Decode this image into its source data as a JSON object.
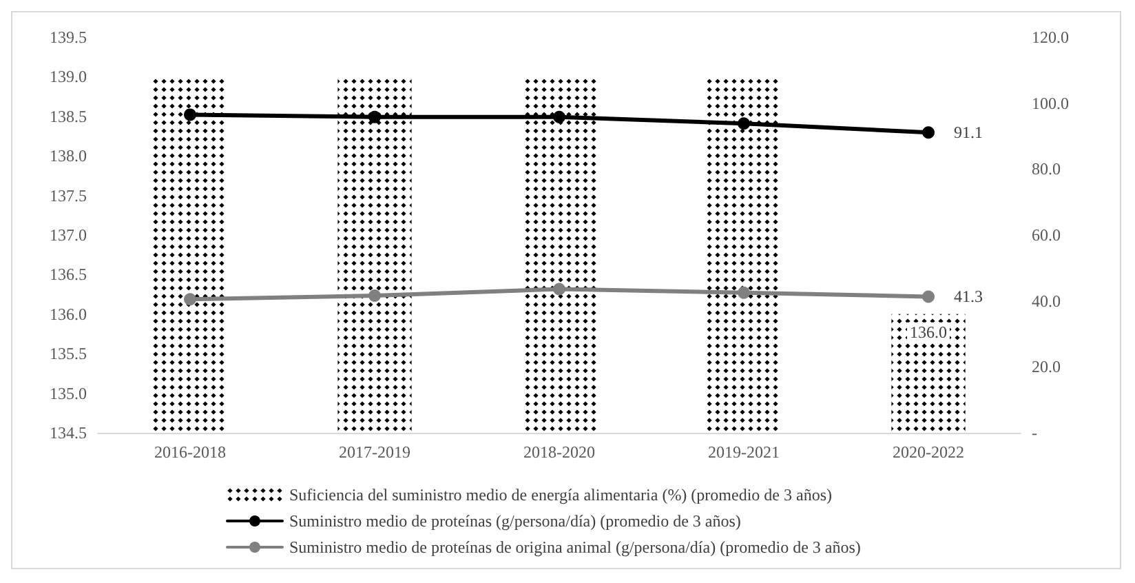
{
  "chart_data": {
    "type": "bar",
    "categories": [
      "2016-2018",
      "2017-2019",
      "2018-2020",
      "2019-2021",
      "2020-2022"
    ],
    "series": [
      {
        "name": "Suficiencia del suministro medio de energía alimentaria (%) (promedio de 3 años)",
        "color": "#000000",
        "values": [
          139.0,
          139.0,
          139.0,
          139.0,
          136.0
        ],
        "value_labels": [
          null,
          null,
          null,
          null,
          "136.0"
        ]
      },
      {
        "name": "Suministro medio de proteínas (g/persona/día) (promedio de 3 años)",
        "type": "line",
        "axis": "y2",
        "color": "#000000",
        "values": [
          96.5,
          95.8,
          95.8,
          93.8,
          91.1
        ],
        "value_labels": [
          null,
          null,
          null,
          null,
          "91.1"
        ]
      },
      {
        "name": "Suministro medio de proteínas de origina animal (g/persona/día) (promedio de 3 años)",
        "type": "line",
        "axis": "y2",
        "color": "#808080",
        "values": [
          40.5,
          41.6,
          43.6,
          42.5,
          41.3
        ],
        "value_labels": [
          null,
          null,
          null,
          null,
          "41.3"
        ]
      }
    ],
    "ylim": [
      134.5,
      139.5
    ],
    "yticks": [
      134.5,
      {
        "value": 135,
        "label": "135.0"
      },
      135.5,
      {
        "value": 136,
        "label": "136.0"
      },
      136.5,
      {
        "value": 137,
        "label": "137.0"
      },
      137.5,
      {
        "value": 138,
        "label": "138.0"
      },
      138.5,
      {
        "value": 139,
        "label": "139.0"
      },
      139.5
    ],
    "y2lim": [
      0,
      120
    ],
    "y2ticks": [
      {
        "value": 0,
        "label": "-"
      },
      {
        "value": 20,
        "label": "20.0"
      },
      {
        "value": 40,
        "label": "40.0"
      },
      {
        "value": 60,
        "label": "60.0"
      },
      {
        "value": 80,
        "label": "80.0"
      },
      {
        "value": 100,
        "label": "100.0"
      },
      {
        "value": 120,
        "label": "120.0"
      }
    ],
    "grid": false,
    "legend": "bottom",
    "marker": "circle",
    "line_style": "solid"
  }
}
